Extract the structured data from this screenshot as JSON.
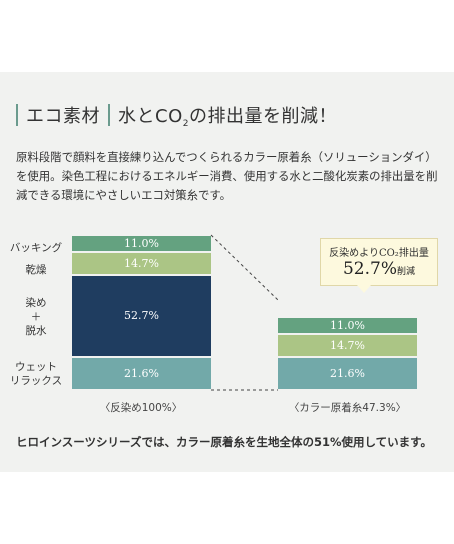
{
  "heading": {
    "tag": "エコ素材",
    "title_pre": "水とCO",
    "title_sub": "2",
    "title_post": "の排出量を削減！"
  },
  "description": "原料段階で顔料を直接練り込んでつくられるカラー原着糸（ソリューションダイ）を使用。染色工程におけるエネルギー消費、使用する水と二酸化炭素の排出量を削減できる環境にやさしいエコ対策糸です。",
  "chart_data": {
    "type": "bar",
    "stacked": true,
    "categories": [
      "〈反染め100%〉",
      "〈カラー原着糸47.3%〉"
    ],
    "series": [
      {
        "name": "ウェット\nリラックス",
        "values": [
          21.6,
          21.6
        ],
        "color": "#72a9a9"
      },
      {
        "name": "染め\n＋\n脱水",
        "values": [
          52.7,
          0
        ],
        "color": "#1f3d60"
      },
      {
        "name": "乾燥",
        "values": [
          14.7,
          14.7
        ],
        "color": "#abc585"
      },
      {
        "name": "バッキング",
        "values": [
          11.0,
          11.0
        ],
        "color": "#64a280"
      }
    ],
    "data_labels": [
      "11.0%",
      "14.7%",
      "52.7%",
      "21.6%"
    ],
    "totals": [
      100,
      47.3
    ],
    "legend": "left"
  },
  "callout": {
    "title": "反染めよりCO₂排出量",
    "value": "52.7%",
    "unit": "削減"
  },
  "footnote": "ヒロインスーツシリーズでは、カラー原着糸を生地全体の51%使用しています。"
}
